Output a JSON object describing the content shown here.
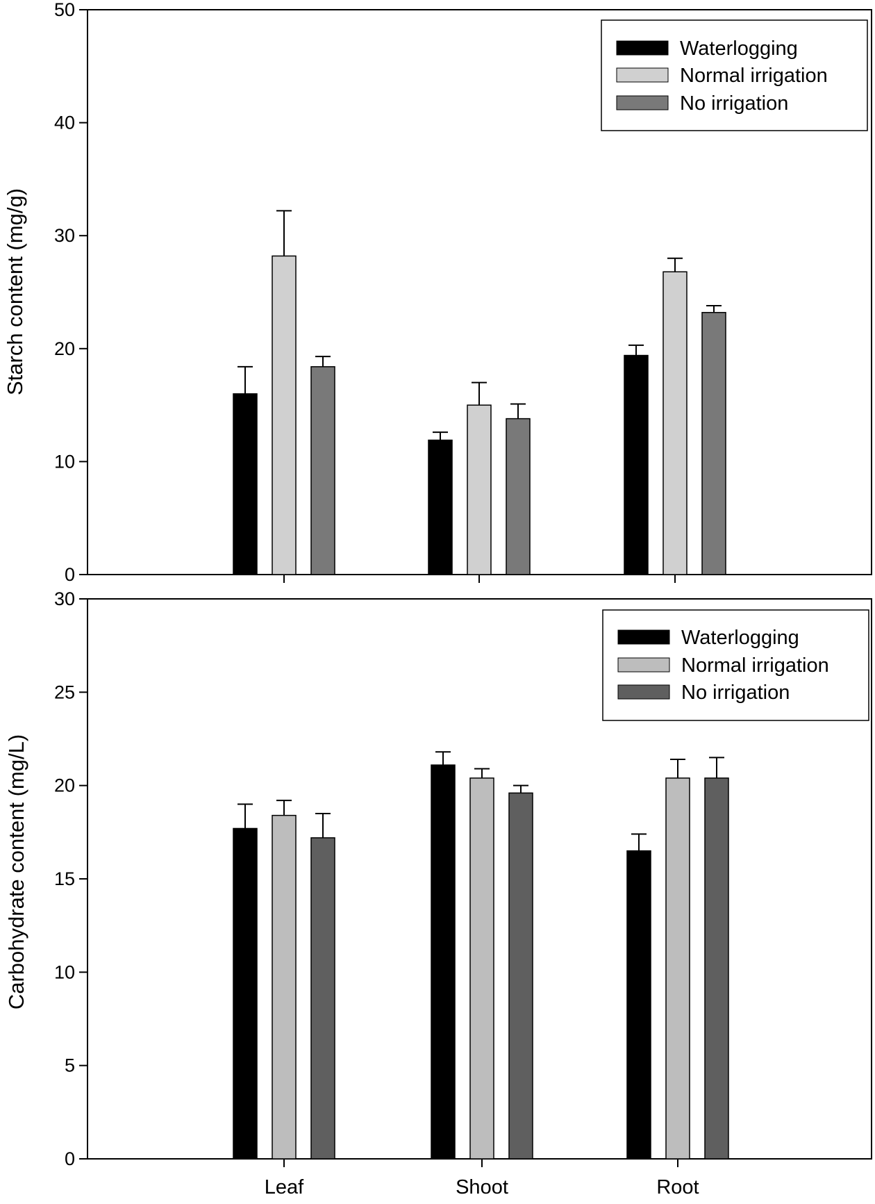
{
  "chart_data": [
    {
      "type": "bar",
      "title": "",
      "xlabel": "",
      "ylabel": "Starch content (mg/g)",
      "ylim": [
        0,
        50
      ],
      "yticks": [
        0,
        10,
        20,
        30,
        40,
        50
      ],
      "categories": [
        "Leaf",
        "Shoot",
        "Root"
      ],
      "show_category_labels": false,
      "grid": false,
      "legend_position": "top-right",
      "series": [
        {
          "name": "Waterlogging",
          "color": "#000000",
          "values": [
            16.0,
            11.9,
            19.4
          ],
          "errors": [
            2.4,
            0.7,
            0.9
          ]
        },
        {
          "name": "Normal irrigation",
          "color": "#d0d0d0",
          "values": [
            28.2,
            15.0,
            26.8
          ],
          "errors": [
            4.0,
            2.0,
            1.2
          ]
        },
        {
          "name": "No irrigation",
          "color": "#797979",
          "values": [
            18.4,
            13.8,
            23.2
          ],
          "errors": [
            0.9,
            1.3,
            0.6
          ]
        }
      ]
    },
    {
      "type": "bar",
      "title": "",
      "xlabel": "",
      "ylabel": "Carbohydrate content (mg/L)",
      "ylim": [
        0,
        30
      ],
      "yticks": [
        0,
        5,
        10,
        15,
        20,
        25,
        30
      ],
      "categories": [
        "Leaf",
        "Shoot",
        "Root"
      ],
      "show_category_labels": true,
      "grid": false,
      "legend_position": "top-right",
      "series": [
        {
          "name": "Waterlogging",
          "color": "#000000",
          "values": [
            17.7,
            21.1,
            16.5
          ],
          "errors": [
            1.3,
            0.7,
            0.9
          ]
        },
        {
          "name": "Normal irrigation",
          "color": "#bdbdbd",
          "values": [
            18.4,
            20.4,
            20.4
          ],
          "errors": [
            0.8,
            0.5,
            1.0
          ]
        },
        {
          "name": "No irrigation",
          "color": "#5f5f5f",
          "values": [
            17.2,
            19.6,
            20.4
          ],
          "errors": [
            1.3,
            0.4,
            1.1
          ]
        }
      ]
    }
  ]
}
